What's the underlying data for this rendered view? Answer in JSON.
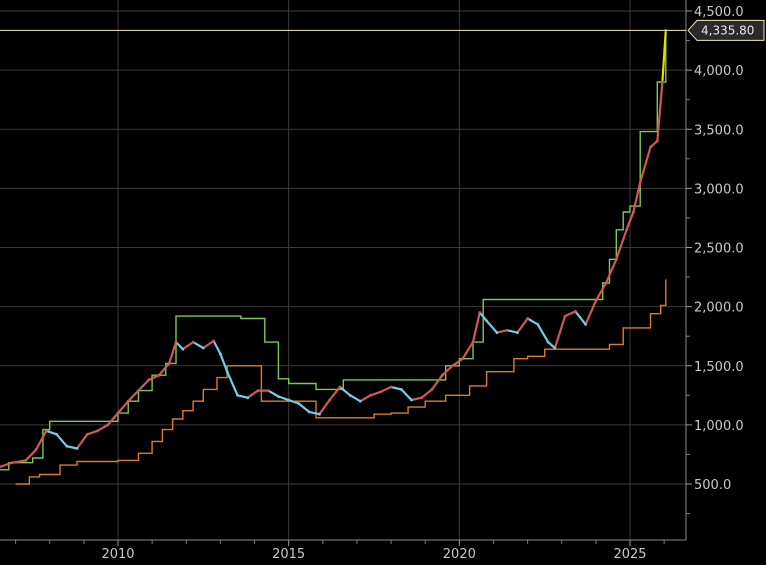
{
  "chart_data": {
    "type": "line",
    "title": "",
    "xlabel": "",
    "ylabel": "",
    "xlim": [
      2006.0,
      2026.9
    ],
    "ylim": [
      0,
      4600
    ],
    "x_ticks": [
      2010,
      2015,
      2020,
      2025
    ],
    "x_tick_labels": [
      "2010",
      "2015",
      "2020",
      "2025"
    ],
    "y_ticks": [
      500,
      1000,
      1500,
      2000,
      2500,
      3000,
      3500,
      4000,
      4500
    ],
    "y_tick_labels": [
      "500.0",
      "1,000.0",
      "1,500.0",
      "2,000.0",
      "2,500.0",
      "3,000.0",
      "3,500.0",
      "4,000.0",
      "4,500.0"
    ],
    "grid": true,
    "last_price": 4335.8,
    "last_price_label": "4,335.80",
    "colors": {
      "price_up": "#d0585a",
      "price_down": "#6fcfe6",
      "upper_band": "#7ec850",
      "lower_band": "#e07a28",
      "last_price_line": "#f2e6b8",
      "last_candle": "#e8e000",
      "grid": "#3a3a3a"
    },
    "series": [
      {
        "key": "price",
        "x": [
          2006.1,
          2006.5,
          2006.9,
          2007.3,
          2007.6,
          2007.9,
          2008.2,
          2008.5,
          2008.8,
          2009.1,
          2009.4,
          2009.7,
          2010.0,
          2010.3,
          2010.6,
          2010.9,
          2011.2,
          2011.5,
          2011.7,
          2011.9,
          2012.2,
          2012.5,
          2012.8,
          2013.0,
          2013.2,
          2013.5,
          2013.8,
          2014.1,
          2014.4,
          2014.7,
          2015.0,
          2015.3,
          2015.6,
          2015.9,
          2016.2,
          2016.5,
          2016.8,
          2017.1,
          2017.4,
          2017.7,
          2018.0,
          2018.3,
          2018.6,
          2018.9,
          2019.2,
          2019.5,
          2019.8,
          2020.1,
          2020.4,
          2020.6,
          2020.8,
          2021.1,
          2021.4,
          2021.7,
          2022.0,
          2022.3,
          2022.6,
          2022.8,
          2023.1,
          2023.4,
          2023.7,
          2024.0,
          2024.3,
          2024.6,
          2024.9,
          2025.1,
          2025.3,
          2025.6,
          2025.8,
          2025.95,
          2026.05
        ],
        "values": [
          600,
          640,
          680,
          700,
          790,
          950,
          920,
          820,
          800,
          920,
          950,
          1000,
          1100,
          1200,
          1290,
          1380,
          1420,
          1520,
          1700,
          1640,
          1700,
          1650,
          1710,
          1600,
          1450,
          1250,
          1230,
          1290,
          1290,
          1240,
          1210,
          1180,
          1110,
          1090,
          1210,
          1320,
          1250,
          1200,
          1250,
          1280,
          1320,
          1300,
          1210,
          1230,
          1300,
          1420,
          1500,
          1560,
          1700,
          1950,
          1880,
          1780,
          1800,
          1780,
          1900,
          1850,
          1700,
          1650,
          1920,
          1960,
          1850,
          2050,
          2200,
          2400,
          2650,
          2800,
          3050,
          3350,
          3400,
          3900,
          4335.8
        ]
      },
      {
        "key": "upper_band",
        "x": [
          2006.1,
          2006.8,
          2007.5,
          2007.8,
          2008.0,
          2009.7,
          2010.0,
          2010.3,
          2010.6,
          2011.0,
          2011.4,
          2011.7,
          2013.0,
          2013.6,
          2014.3,
          2014.7,
          2015.0,
          2015.8,
          2016.4,
          2016.6,
          2019.2,
          2019.6,
          2020.0,
          2020.4,
          2020.7,
          2024.0,
          2024.2,
          2024.4,
          2024.6,
          2024.8,
          2025.0,
          2025.3,
          2025.6,
          2025.8,
          2026.05
        ],
        "values": [
          620,
          680,
          720,
          960,
          1030,
          1030,
          1100,
          1200,
          1290,
          1420,
          1520,
          1920,
          1920,
          1900,
          1700,
          1390,
          1350,
          1300,
          1300,
          1380,
          1380,
          1500,
          1560,
          1700,
          2060,
          2060,
          2200,
          2400,
          2650,
          2800,
          2850,
          3480,
          3480,
          3900,
          4340
        ]
      },
      {
        "key": "lower_band",
        "x": [
          2007.0,
          2007.4,
          2007.7,
          2008.1,
          2008.3,
          2008.8,
          2009.3,
          2009.7,
          2010.0,
          2010.3,
          2010.6,
          2011.0,
          2011.3,
          2011.6,
          2011.9,
          2012.2,
          2012.5,
          2012.9,
          2013.2,
          2013.6,
          2014.2,
          2015.4,
          2015.8,
          2016.3,
          2017.0,
          2017.5,
          2018.0,
          2018.5,
          2019.0,
          2019.6,
          2020.0,
          2020.3,
          2020.8,
          2021.6,
          2022.0,
          2022.5,
          2023.0,
          2023.3,
          2023.8,
          2024.4,
          2024.8,
          2025.3,
          2025.6,
          2025.9,
          2026.05
        ],
        "values": [
          500,
          560,
          580,
          580,
          660,
          690,
          690,
          690,
          700,
          700,
          760,
          860,
          960,
          1050,
          1120,
          1200,
          1300,
          1400,
          1500,
          1500,
          1200,
          1200,
          1060,
          1060,
          1060,
          1090,
          1100,
          1150,
          1200,
          1250,
          1250,
          1330,
          1450,
          1560,
          1580,
          1640,
          1640,
          1640,
          1640,
          1680,
          1820,
          1820,
          1940,
          2010,
          2230
        ]
      }
    ]
  }
}
